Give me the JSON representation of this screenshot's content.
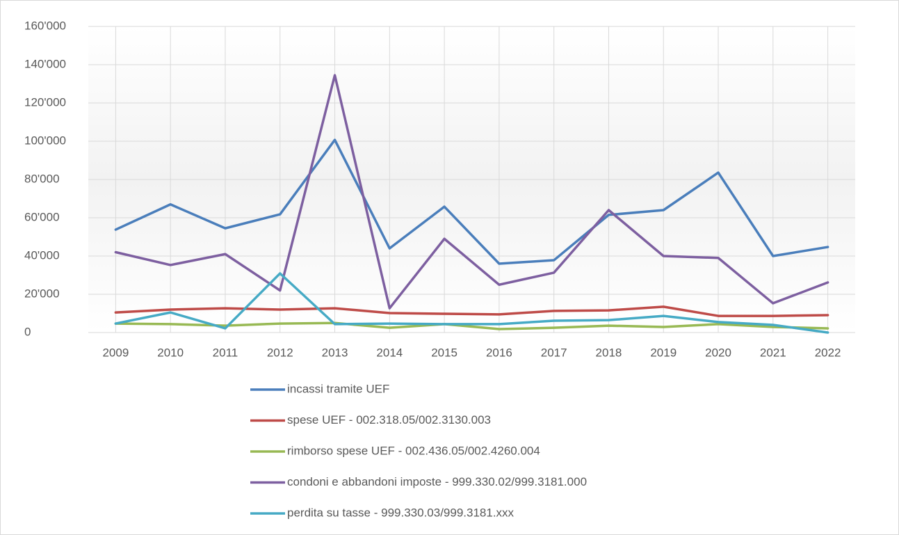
{
  "chart_data": {
    "type": "line",
    "categories": [
      "2009",
      "2010",
      "2011",
      "2012",
      "2013",
      "2014",
      "2015",
      "2016",
      "2017",
      "2018",
      "2019",
      "2020",
      "2021",
      "2022"
    ],
    "series": [
      {
        "name": "incassi tramite UEF",
        "color": "#4a7ebb",
        "values": [
          53800,
          67000,
          54500,
          61800,
          100700,
          44000,
          65800,
          36000,
          37800,
          61500,
          64000,
          83600,
          40000,
          44700
        ]
      },
      {
        "name": "spese UEF - 002.318.05/002.3130.003",
        "color": "#be4b48",
        "values": [
          10500,
          12000,
          12700,
          12000,
          12700,
          10200,
          9800,
          9500,
          11300,
          11600,
          13500,
          8700,
          8700,
          9100
        ]
      },
      {
        "name": "rimborso spese UEF - 002.436.05/002.4260.004",
        "color": "#98b954",
        "values": [
          4700,
          4400,
          3600,
          4700,
          5000,
          2500,
          4400,
          1800,
          2500,
          3600,
          2900,
          4400,
          2900,
          2200
        ]
      },
      {
        "name": "condoni e abbandoni imposte - 999.330.02/999.3181.000",
        "color": "#7d5fa0",
        "values": [
          42000,
          35300,
          41000,
          22000,
          134500,
          12700,
          49000,
          25000,
          31300,
          64000,
          40000,
          39000,
          15300,
          26200
        ]
      },
      {
        "name": "perdita su tasse - 999.330.03/999.3181.xxx",
        "color": "#46aac5",
        "values": [
          4700,
          10500,
          2200,
          30900,
          4400,
          4700,
          4400,
          4400,
          6200,
          6500,
          8700,
          5500,
          4000,
          0
        ]
      }
    ],
    "ylim": [
      0,
      160000
    ],
    "yticks": [
      0,
      {
        "value": 20000,
        "label": "20'000"
      },
      {
        "value": 40000,
        "label": "40'000"
      },
      {
        "value": 60000,
        "label": "60'000"
      },
      {
        "value": 80000,
        "label": "80'000"
      },
      {
        "value": 100000,
        "label": "100'000"
      },
      {
        "value": 120000,
        "label": "120'000"
      },
      {
        "value": 140000,
        "label": "140'000"
      },
      {
        "value": 160000,
        "label": "160'000"
      }
    ],
    "grid": true,
    "legend": "bottom"
  }
}
